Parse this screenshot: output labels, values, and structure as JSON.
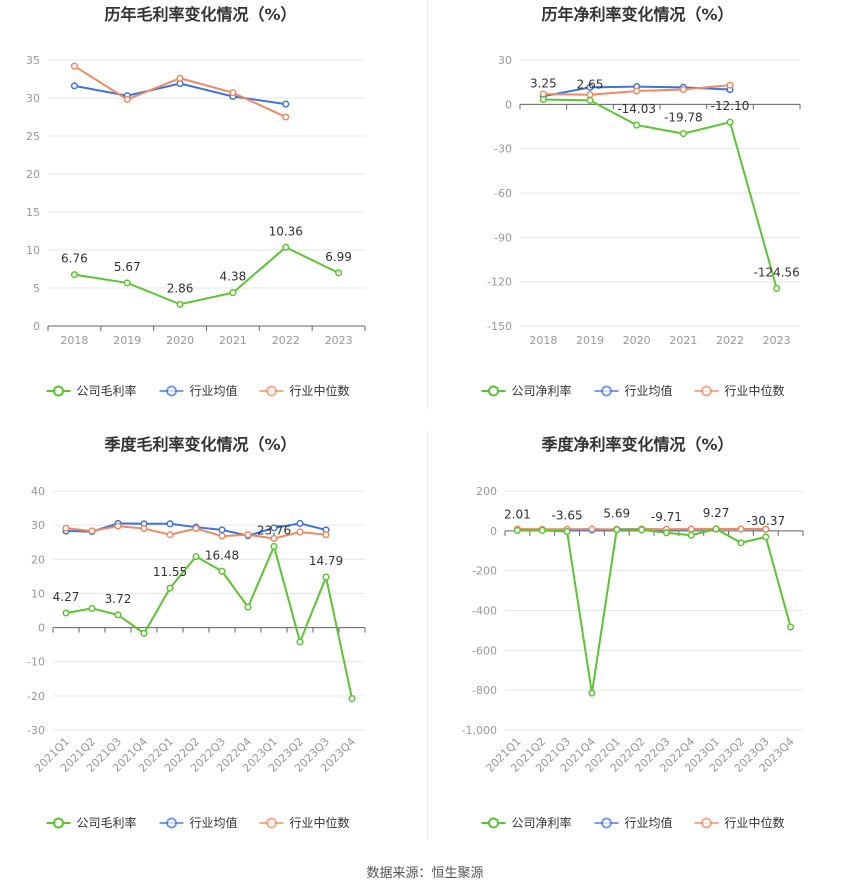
{
  "colors": {
    "company": "#5cc433",
    "avg": "#3f74d9",
    "median": "#f08a62",
    "grid": "#e6e6e6",
    "axis": "#999999",
    "title": "#333333"
  },
  "source_text": "数据来源：恒生聚源",
  "chart_data": [
    {
      "type": "line",
      "title": "历年毛利率变化情况（%）",
      "categories": [
        "2018",
        "2019",
        "2020",
        "2021",
        "2022",
        "2023"
      ],
      "ylim": [
        0,
        35
      ],
      "yticks": [
        0,
        5,
        10,
        15,
        20,
        25,
        30,
        35
      ],
      "rotate_x": false,
      "series": [
        {
          "name": "公司毛利率",
          "key": "company",
          "values": [
            6.76,
            5.67,
            2.86,
            4.38,
            10.36,
            6.99
          ],
          "labels": [
            "6.76",
            "5.67",
            "2.86",
            "4.38",
            "10.36",
            "6.99"
          ]
        },
        {
          "name": "行业均值",
          "key": "avg",
          "values": [
            31.6,
            30.3,
            31.9,
            30.2,
            29.2,
            null
          ]
        },
        {
          "name": "行业中位数",
          "key": "median",
          "values": [
            34.2,
            29.8,
            32.6,
            30.7,
            27.5,
            null
          ]
        }
      ]
    },
    {
      "type": "line",
      "title": "历年净利率变化情况（%）",
      "categories": [
        "2018",
        "2019",
        "2020",
        "2021",
        "2022",
        "2023"
      ],
      "ylim": [
        -150,
        30
      ],
      "yticks": [
        -150,
        -120,
        -90,
        -60,
        -30,
        0,
        30
      ],
      "rotate_x": false,
      "series": [
        {
          "name": "公司净利率",
          "key": "company",
          "values": [
            3.25,
            2.65,
            -14.03,
            -19.78,
            -12.1,
            -124.56
          ],
          "labels": [
            "3.25",
            "2.65",
            "-14.03",
            "-19.78",
            "-12.10",
            "-124.56"
          ]
        },
        {
          "name": "行业均值",
          "key": "avg",
          "values": [
            5.5,
            11.5,
            12.0,
            11.5,
            10.0,
            null
          ]
        },
        {
          "name": "行业中位数",
          "key": "median",
          "values": [
            7.0,
            6.5,
            9.0,
            10.0,
            13.0,
            null
          ]
        }
      ]
    },
    {
      "type": "line",
      "title": "季度毛利率变化情况（%）",
      "categories": [
        "2021Q1",
        "2021Q2",
        "2021Q3",
        "2021Q4",
        "2022Q1",
        "2022Q2",
        "2022Q3",
        "2022Q4",
        "2023Q1",
        "2023Q2",
        "2023Q3",
        "2023Q4"
      ],
      "ylim": [
        -30,
        40
      ],
      "yticks": [
        -30,
        -20,
        -10,
        0,
        10,
        20,
        30,
        40
      ],
      "rotate_x": true,
      "series": [
        {
          "name": "公司毛利率",
          "key": "company",
          "values": [
            4.27,
            5.6,
            3.72,
            -1.7,
            11.55,
            20.8,
            16.48,
            6.0,
            23.76,
            -4.2,
            14.79,
            -20.8
          ],
          "labels": [
            "4.27",
            "",
            "3.72",
            "",
            "11.55",
            "",
            "16.48",
            "",
            "23.76",
            "",
            "14.79",
            ""
          ]
        },
        {
          "name": "行业均值",
          "key": "avg",
          "values": [
            28.3,
            28.1,
            30.5,
            30.4,
            30.4,
            29.4,
            28.6,
            26.9,
            29.2,
            30.5,
            28.6,
            null
          ]
        },
        {
          "name": "行业中位数",
          "key": "median",
          "values": [
            29.1,
            28.3,
            29.7,
            29.0,
            27.2,
            29.0,
            26.8,
            27.2,
            26.1,
            28.0,
            27.2,
            null
          ]
        }
      ]
    },
    {
      "type": "line",
      "title": "季度净利率变化情况（%）",
      "categories": [
        "2021Q1",
        "2021Q2",
        "2021Q3",
        "2021Q4",
        "2022Q1",
        "2022Q2",
        "2022Q3",
        "2022Q4",
        "2023Q1",
        "2023Q2",
        "2023Q3",
        "2023Q4"
      ],
      "ylim": [
        -1000,
        200
      ],
      "yticks": [
        -1000,
        -800,
        -600,
        -400,
        -200,
        0,
        200
      ],
      "ytick_labels": [
        "-1,000",
        "-800",
        "-600",
        "-400",
        "-200",
        "0",
        "200"
      ],
      "rotate_x": true,
      "series": [
        {
          "name": "公司净利率",
          "key": "company",
          "values": [
            2.01,
            2.5,
            -3.65,
            -815,
            5.69,
            5.0,
            -9.71,
            -22.0,
            9.27,
            -60.0,
            -30.37,
            -483.0
          ],
          "labels": [
            "2.01",
            "",
            "-3.65",
            "",
            "5.69",
            "",
            "-9.71",
            "",
            "9.27",
            "",
            "-30.37",
            ""
          ]
        },
        {
          "name": "行业均值",
          "key": "avg",
          "values": [
            6.0,
            6.0,
            5.0,
            4.0,
            8.0,
            9.0,
            7.0,
            8.0,
            9.0,
            9.0,
            8.0,
            null
          ]
        },
        {
          "name": "行业中位数",
          "key": "median",
          "values": [
            9.0,
            8.0,
            8.0,
            9.0,
            7.0,
            9.0,
            8.0,
            9.0,
            10.0,
            9.0,
            8.0,
            null
          ]
        }
      ]
    }
  ]
}
